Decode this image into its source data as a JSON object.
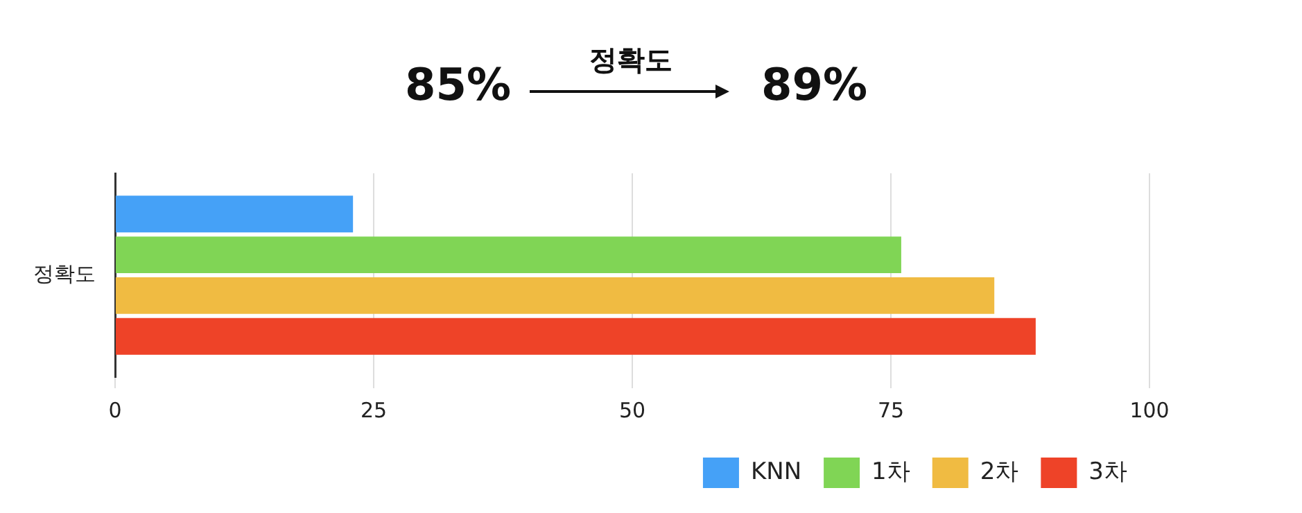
{
  "chart_data": {
    "type": "bar",
    "orientation": "horizontal",
    "categories": [
      "정확도"
    ],
    "series": [
      {
        "name": "KNN",
        "color": "#45a1f7",
        "values": [
          23
        ]
      },
      {
        "name": "1차",
        "color": "#80d555",
        "values": [
          76
        ]
      },
      {
        "name": "2차",
        "color": "#f0bb42",
        "values": [
          85
        ]
      },
      {
        "name": "3차",
        "color": "#ee4328",
        "values": [
          89
        ]
      }
    ],
    "xlim": [
      0,
      100
    ],
    "xticks": [
      0,
      25,
      50,
      75,
      100
    ],
    "grid": "x",
    "legend": "bottom right",
    "annotations": [
      "85%",
      "정확도",
      "89%"
    ]
  }
}
